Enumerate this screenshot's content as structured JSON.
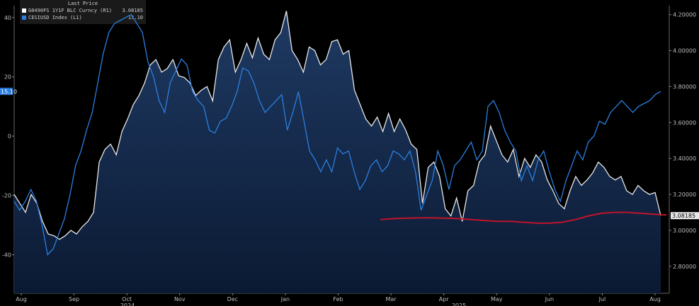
{
  "legend": {
    "header": "Last Price",
    "items": [
      {
        "name": "G0490FS 1Y1F BLC Curncy (R1)",
        "value": "3.08185",
        "color": "#ffffff"
      },
      {
        "name": "CESIUSD Index (L1)",
        "value": "15.10",
        "color": "#2a7fe0"
      }
    ]
  },
  "chart_data": {
    "type": "line",
    "left_axis": {
      "ticks": [
        40,
        20,
        0,
        -20,
        -40
      ],
      "range": [
        -53,
        44
      ]
    },
    "right_axis": {
      "ticks": [
        "4.20000",
        "4.00000",
        "3.80000",
        "3.60000",
        "3.40000",
        "3.20000",
        "3.00000",
        "2.80000"
      ],
      "range": [
        2.65,
        4.25
      ]
    },
    "x_ticks": [
      "Aug",
      "Sep",
      "Oct",
      "Nov",
      "Dec",
      "Jan",
      "Feb",
      "Mar",
      "Apr",
      "May",
      "Jun",
      "Jul",
      "Aug"
    ],
    "year_labels": [
      "2024",
      "2025"
    ],
    "current_value_tags": {
      "left": "15.10",
      "right": "3.08185"
    },
    "series": [
      {
        "name": "G0490FS 1Y1F BLC Curncy (R1)",
        "axis": "right",
        "style": "area",
        "color": "#e8e8e8",
        "values": [
          3.2,
          3.15,
          3.1,
          3.2,
          3.15,
          3.05,
          2.98,
          2.97,
          2.95,
          2.97,
          3.0,
          2.98,
          3.02,
          3.05,
          3.1,
          3.38,
          3.45,
          3.48,
          3.42,
          3.55,
          3.62,
          3.7,
          3.75,
          3.82,
          3.92,
          3.95,
          3.88,
          3.9,
          3.95,
          3.86,
          3.85,
          3.82,
          3.75,
          3.78,
          3.8,
          3.72,
          3.95,
          4.02,
          4.06,
          3.88,
          3.95,
          4.04,
          3.96,
          4.07,
          3.98,
          3.95,
          4.06,
          4.1,
          4.22,
          4.0,
          3.95,
          3.88,
          4.02,
          4.0,
          3.92,
          3.95,
          4.05,
          4.06,
          3.98,
          4.0,
          3.78,
          3.7,
          3.62,
          3.58,
          3.63,
          3.55,
          3.65,
          3.55,
          3.62,
          3.56,
          3.48,
          3.45,
          3.15,
          3.35,
          3.38,
          3.3,
          3.12,
          3.08,
          3.18,
          3.05,
          3.22,
          3.25,
          3.38,
          3.42,
          3.58,
          3.5,
          3.42,
          3.38,
          3.45,
          3.3,
          3.4,
          3.35,
          3.42,
          3.38,
          3.28,
          3.22,
          3.15,
          3.12,
          3.22,
          3.3,
          3.25,
          3.28,
          3.32,
          3.38,
          3.35,
          3.3,
          3.28,
          3.3,
          3.22,
          3.2,
          3.25,
          3.22,
          3.2,
          3.21,
          3.08185
        ]
      },
      {
        "name": "CESIUSD Index (L1)",
        "axis": "left",
        "style": "line",
        "color": "#2a7fe0",
        "values": [
          -22,
          -25,
          -22,
          -18,
          -22,
          -30,
          -40,
          -38,
          -33,
          -28,
          -20,
          -10,
          -5,
          2,
          8,
          18,
          28,
          35,
          38,
          39,
          40,
          41,
          38,
          35,
          25,
          20,
          12,
          8,
          18,
          22,
          26,
          24,
          15,
          12,
          10,
          2,
          1,
          5,
          6,
          10,
          15,
          23,
          22,
          18,
          12,
          8,
          10,
          12,
          14,
          2,
          8,
          15,
          5,
          -5,
          -8,
          -12,
          -8,
          -12,
          -4,
          -6,
          -5,
          -12,
          -18,
          -15,
          -10,
          -8,
          -12,
          -10,
          -5,
          -6,
          -8,
          -5,
          -12,
          -25,
          -20,
          -15,
          -5,
          -10,
          -18,
          -10,
          -8,
          -5,
          -2,
          -8,
          -5,
          10,
          12,
          8,
          2,
          -2,
          -5,
          -15,
          -10,
          -15,
          -8,
          -5,
          -12,
          -18,
          -22,
          -15,
          -10,
          -5,
          -8,
          -2,
          0,
          5,
          4,
          8,
          10,
          12,
          10,
          8,
          10,
          11,
          12,
          14,
          15.1
        ]
      },
      {
        "name": "",
        "axis": "right",
        "style": "line",
        "color": "#c0142a",
        "values": [
          3.06,
          3.065,
          3.068,
          3.07,
          3.07,
          3.068,
          3.065,
          3.06,
          3.055,
          3.05,
          3.05,
          3.045,
          3.04,
          3.04,
          3.045,
          3.06,
          3.08,
          3.095,
          3.1,
          3.1,
          3.095,
          3.09,
          3.085
        ]
      }
    ]
  }
}
